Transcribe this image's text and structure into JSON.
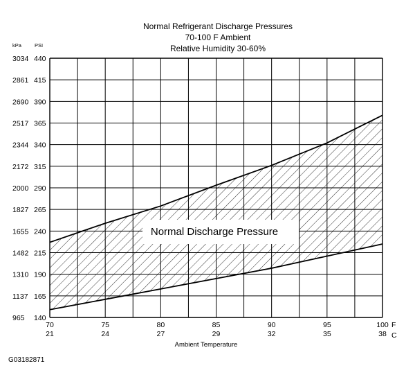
{
  "chart_data": {
    "type": "area",
    "title": "Normal Refrigerant Discharge Pressures",
    "subtitle_lines": [
      "70-100 F Ambient",
      "Relative Humidity 30-60%"
    ],
    "xlabel": "Ambient Temperature",
    "x_unit_primary": "F",
    "x_unit_secondary": "C",
    "y_unit_left": "kPa",
    "y_unit_right": "PSI",
    "x_ticks_f": [
      "70",
      "75",
      "80",
      "85",
      "90",
      "95",
      "100"
    ],
    "x_ticks_c": [
      "21",
      "24",
      "27",
      "29",
      "32",
      "35",
      "38"
    ],
    "y_ticks_psi": [
      "140",
      "165",
      "190",
      "215",
      "240",
      "265",
      "290",
      "315",
      "340",
      "365",
      "390",
      "415",
      "440"
    ],
    "y_ticks_kpa": [
      "965",
      "1137",
      "1310",
      "1482",
      "1655",
      "1827",
      "2000",
      "2172",
      "2344",
      "2517",
      "2690",
      "2861",
      "3034"
    ],
    "xlim": [
      70,
      100
    ],
    "ylim": [
      140,
      440
    ],
    "band_label": "Normal Discharge Pressure",
    "series": [
      {
        "x": [
          70,
          75,
          80,
          85,
          90,
          95,
          100
        ],
        "values": [
          149,
          161,
          173,
          185,
          197,
          211,
          225
        ]
      },
      {
        "x": [
          70,
          75,
          80,
          85,
          90,
          95,
          100
        ],
        "values": [
          227,
          249,
          269,
          293,
          316,
          342,
          374
        ]
      }
    ]
  },
  "figure_id": "G03182871"
}
